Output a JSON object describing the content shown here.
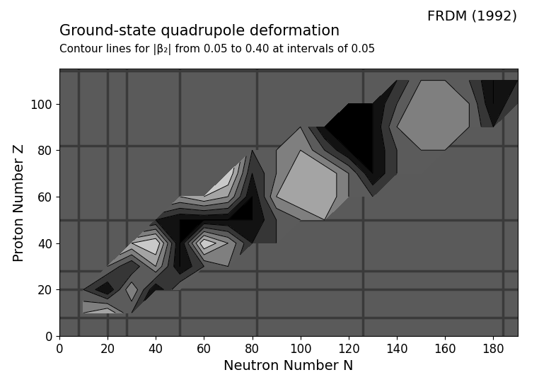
{
  "chart_data": {
    "type": "contour",
    "title": "Ground-state quadrupole deformation",
    "subtitle": "Contour lines for |β₂| from 0.05 to 0.40 at intervals of 0.05",
    "annotation": "FRDM (1992)",
    "x_label": "Neutron Number N",
    "y_label": "Proton Number Z",
    "xlim": [
      0,
      190
    ],
    "ylim": [
      0,
      115
    ],
    "xticks": [
      0,
      20,
      40,
      60,
      80,
      100,
      120,
      140,
      160,
      180
    ],
    "yticks": [
      0,
      20,
      40,
      60,
      80,
      100
    ],
    "levels": [
      0.05,
      0.1,
      0.15,
      0.2,
      0.25,
      0.3,
      0.35,
      0.4
    ],
    "magic_n": [
      8,
      20,
      28,
      50,
      82,
      126,
      184
    ],
    "magic_z": [
      8,
      20,
      28,
      50,
      82,
      114
    ],
    "color": "#5a5a5a",
    "x": [
      0,
      10,
      20,
      30,
      40,
      50,
      60,
      70,
      80,
      90,
      100,
      110,
      120,
      130,
      140,
      150,
      160,
      170,
      180,
      190
    ],
    "y": [
      0,
      10,
      20,
      30,
      40,
      50,
      60,
      70,
      80,
      90,
      100,
      110
    ],
    "cells": [
      [
        null,
        null,
        null,
        null,
        null,
        null,
        null,
        null,
        null,
        null,
        null,
        null,
        null,
        null,
        null,
        null,
        null,
        null,
        null,
        null
      ],
      [
        null,
        0.25,
        0.3,
        0.15,
        null,
        null,
        null,
        null,
        null,
        null,
        null,
        null,
        null,
        null,
        null,
        null,
        null,
        null,
        null,
        null
      ],
      [
        null,
        0.15,
        0.05,
        0.25,
        0.05,
        0.2,
        null,
        null,
        null,
        null,
        null,
        null,
        null,
        null,
        null,
        null,
        null,
        null,
        null,
        null
      ],
      [
        null,
        null,
        0.2,
        0.1,
        0.25,
        0.05,
        0.15,
        0.2,
        null,
        null,
        null,
        null,
        null,
        null,
        null,
        null,
        null,
        null,
        null,
        null
      ],
      [
        null,
        null,
        null,
        0.3,
        0.35,
        0.05,
        0.35,
        0.25,
        0.1,
        0.15,
        null,
        null,
        null,
        null,
        null,
        null,
        null,
        null,
        null,
        null
      ],
      [
        null,
        null,
        null,
        null,
        0.1,
        0.05,
        0.05,
        0.05,
        0.05,
        0.15,
        0.2,
        0.25,
        null,
        null,
        null,
        null,
        null,
        null,
        null,
        null
      ],
      [
        null,
        null,
        null,
        null,
        null,
        0.25,
        0.3,
        0.25,
        0.05,
        0.25,
        0.3,
        0.3,
        0.2,
        0.15,
        null,
        null,
        null,
        null,
        null,
        null
      ],
      [
        null,
        null,
        null,
        null,
        null,
        null,
        null,
        0.35,
        0.1,
        0.2,
        0.3,
        0.3,
        0.2,
        0.05,
        0.15,
        0.2,
        null,
        null,
        null,
        null
      ],
      [
        null,
        null,
        null,
        null,
        null,
        null,
        null,
        null,
        0.15,
        0.2,
        0.25,
        0.15,
        0.05,
        0.05,
        0.15,
        0.2,
        0.2,
        null,
        null,
        null
      ],
      [
        null,
        null,
        null,
        null,
        null,
        null,
        null,
        null,
        null,
        null,
        0.2,
        0.05,
        0.05,
        0.05,
        0.2,
        0.25,
        0.25,
        0.2,
        0.1,
        null
      ],
      [
        null,
        null,
        null,
        null,
        null,
        null,
        null,
        null,
        null,
        null,
        null,
        null,
        0.05,
        0.05,
        0.15,
        0.25,
        0.25,
        0.2,
        0.05,
        0.15
      ],
      [
        null,
        null,
        null,
        null,
        null,
        null,
        null,
        null,
        null,
        null,
        null,
        null,
        null,
        null,
        0.1,
        0.2,
        0.2,
        0.15,
        0.05,
        0.1
      ]
    ]
  }
}
